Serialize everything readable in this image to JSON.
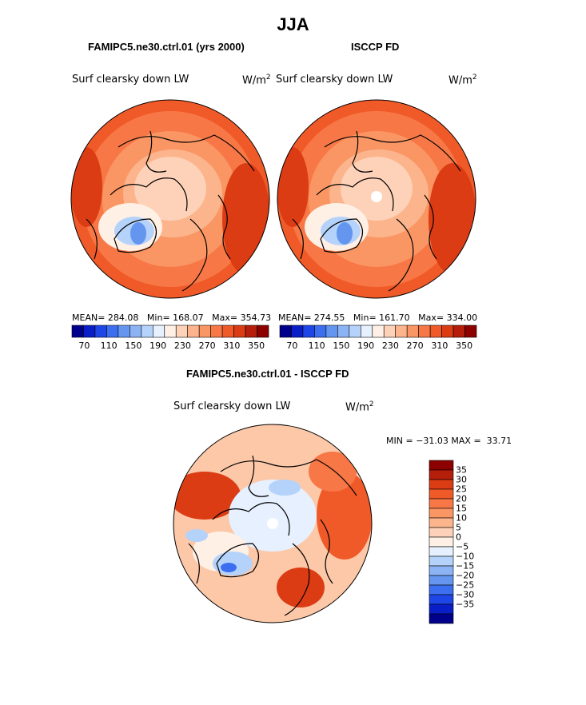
{
  "page": {
    "title": "JJA"
  },
  "chart_data": [
    {
      "type": "heatmap",
      "projection": "polar stereographic (north pole)",
      "title": "FAMIPC5.ne30.ctrl.01 (yrs 2000)",
      "variable": "Surf clearsky down LW",
      "units_base": "W/m",
      "units_exp": "2",
      "mean_label": "MEAN=",
      "mean": "284.08",
      "min_label": "Min=",
      "min": "168.07",
      "max_label": "Max=",
      "max": "354.73",
      "colorbar_ticks": [
        "70",
        "110",
        "150",
        "190",
        "230",
        "270",
        "310",
        "350"
      ],
      "colorbar_levels": [
        50,
        70,
        90,
        110,
        130,
        150,
        170,
        190,
        210,
        230,
        250,
        270,
        290,
        310,
        330,
        350,
        370
      ]
    },
    {
      "type": "heatmap",
      "projection": "polar stereographic (north pole)",
      "title": "ISCCP FD",
      "variable": "Surf clearsky down LW",
      "units_base": "W/m",
      "units_exp": "2",
      "mean_label": "MEAN=",
      "mean": "274.55",
      "min_label": "Min=",
      "min": "161.70",
      "max_label": "Max=",
      "max": "334.00",
      "colorbar_ticks": [
        "70",
        "110",
        "150",
        "190",
        "230",
        "270",
        "310",
        "350"
      ],
      "colorbar_levels": [
        50,
        70,
        90,
        110,
        130,
        150,
        170,
        190,
        210,
        230,
        250,
        270,
        290,
        310,
        330,
        350,
        370
      ]
    },
    {
      "type": "heatmap",
      "projection": "polar stereographic (north pole)",
      "title": "FAMIPC5.ne30.ctrl.01 - ISCCP FD",
      "variable": "Surf clearsky down LW",
      "units_base": "W/m",
      "units_exp": "2",
      "min_label": "MIN =",
      "min": "−31.03",
      "max_label": "MAX =",
      "max": "33.71",
      "colorbar_ticks": [
        "35",
        "30",
        "25",
        "20",
        "15",
        "10",
        "5",
        "0",
        "−5",
        "−10",
        "−15",
        "−20",
        "−25",
        "−30",
        "−35"
      ]
    }
  ],
  "colors": {
    "scale": [
      "#00008c",
      "#0a1ec8",
      "#1e46e6",
      "#3c6ef0",
      "#6496f0",
      "#8cb4f5",
      "#b4d2fa",
      "#e6f0ff",
      "#fff0e6",
      "#fdd2b9",
      "#fcb48c",
      "#fa9664",
      "#f77846",
      "#f05a28",
      "#dc3c14",
      "#b41e0a",
      "#8c0000"
    ],
    "diff_scale": [
      "#8c0000",
      "#b41e0a",
      "#dc3c14",
      "#f05a28",
      "#f77846",
      "#fa9664",
      "#fcb48c",
      "#fdd2b9",
      "#fff0e6",
      "#e6f0ff",
      "#b4d2fa",
      "#8cb4f5",
      "#6496f0",
      "#3c6ef0",
      "#1e46e6",
      "#0a1ec8",
      "#00008c"
    ]
  }
}
